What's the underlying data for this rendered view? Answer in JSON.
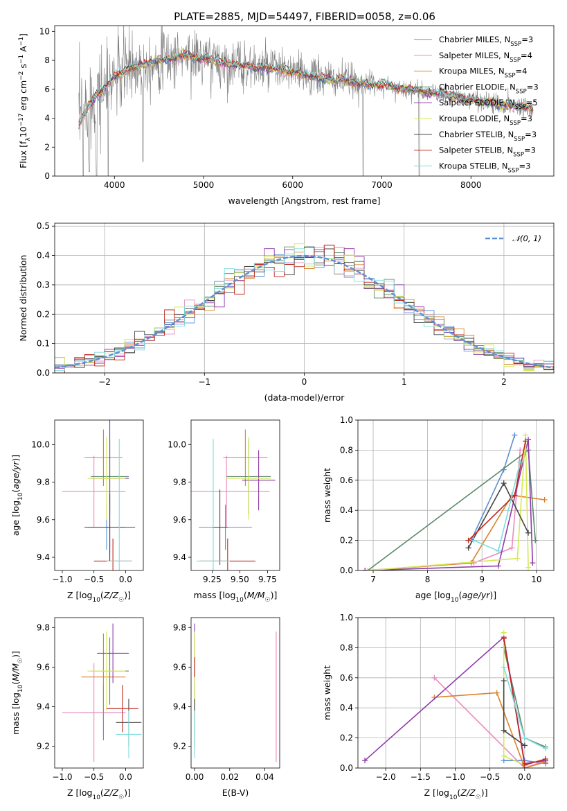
{
  "figure": {
    "title": "PLATE=2885, MJD=54497, FIBERID=0058, z=0.06"
  },
  "colors": {
    "Chabrier MILES": "#5b8fd6",
    "Salpeter MILES": "#e98bbf",
    "Kroupa MILES": "#d9822b",
    "Chabrier ELODIE": "#5a8a6a",
    "Salpeter ELODIE": "#8e3aa8",
    "Kroupa ELODIE": "#d4e857",
    "Chabrier STELIB": "#444444",
    "Salpeter STELIB": "#c0281e",
    "Kroupa STELIB": "#7fdcdc",
    "data": "#808080",
    "normal": "#5b8fd6"
  },
  "chart_data": [
    {
      "id": "spectrum",
      "type": "line",
      "xlabel": "wavelength [Angstrom, rest frame]",
      "ylabel": "Flux [f_λ 10^-17 erg cm^-2 s^-1 A^-1]",
      "xlim": [
        3330,
        8930
      ],
      "ylim": [
        0,
        10.4
      ],
      "xticks": [
        "4000",
        "5000",
        "6000",
        "7000",
        "8000"
      ],
      "yticks": [
        "0",
        "2",
        "4",
        "6",
        "8",
        "10"
      ],
      "legend_position": "upper-right",
      "legend": [
        {
          "model": "Chabrier MILES",
          "n": "3"
        },
        {
          "model": "Salpeter MILES",
          "n": "4"
        },
        {
          "model": "Kroupa MILES",
          "n": "4"
        },
        {
          "model": "Chabrier ELODIE",
          "n": "3"
        },
        {
          "model": "Salpeter ELODIE",
          "n": "5"
        },
        {
          "model": "Kroupa ELODIE",
          "n": "3"
        },
        {
          "model": "Chabrier STELIB",
          "n": "3"
        },
        {
          "model": "Salpeter STELIB",
          "n": "3"
        },
        {
          "model": "Kroupa STELIB",
          "n": "3"
        }
      ],
      "continuum": [
        [
          3600,
          3.6
        ],
        [
          3700,
          4.8
        ],
        [
          3800,
          5.6
        ],
        [
          3900,
          6.1
        ],
        [
          4000,
          6.9
        ],
        [
          4200,
          7.5
        ],
        [
          4400,
          7.9
        ],
        [
          4600,
          8.1
        ],
        [
          4800,
          8.4
        ],
        [
          5000,
          8.1
        ],
        [
          5200,
          7.8
        ],
        [
          5400,
          7.7
        ],
        [
          5600,
          7.5
        ],
        [
          5800,
          7.4
        ],
        [
          6000,
          7.2
        ],
        [
          6200,
          6.9
        ],
        [
          6400,
          6.7
        ],
        [
          6600,
          6.6
        ],
        [
          6800,
          6.4
        ],
        [
          7000,
          6.3
        ],
        [
          7200,
          6.1
        ],
        [
          7400,
          5.9
        ],
        [
          7600,
          5.7
        ],
        [
          7800,
          5.5
        ],
        [
          8000,
          5.3
        ],
        [
          8200,
          5.1
        ],
        [
          8400,
          4.9
        ],
        [
          8600,
          4.8
        ],
        [
          8700,
          4.7
        ]
      ],
      "data_noise_sigma": [
        [
          3600,
          2.2
        ],
        [
          4400,
          1.2
        ],
        [
          5200,
          1.0
        ],
        [
          6000,
          0.8
        ],
        [
          6600,
          0.7
        ],
        [
          7000,
          0.35
        ],
        [
          7800,
          0.35
        ],
        [
          8700,
          0.45
        ]
      ],
      "data_dips": [
        [
          3650,
          0.0
        ],
        [
          3720,
          0.3
        ],
        [
          3800,
          0.0
        ],
        [
          3930,
          0.0
        ],
        [
          4320,
          1.0
        ],
        [
          6790,
          0.0
        ],
        [
          7420,
          0.0
        ]
      ]
    },
    {
      "id": "residuals",
      "type": "line",
      "xlabel": "(data-model)/error",
      "ylabel": "Normed distribution",
      "xlim": [
        -2.5,
        2.5
      ],
      "ylim": [
        0,
        0.51
      ],
      "xticks": [
        "−2",
        "−1",
        "0",
        "1",
        "2"
      ],
      "yticks": [
        "0.0",
        "0.1",
        "0.2",
        "0.3",
        "0.4",
        "0.5"
      ],
      "legend_position": "upper-right",
      "legend": [
        {
          "label": "𝒩(0, 1)"
        }
      ],
      "bin_width": 0.1
    },
    {
      "id": "age_vs_Z",
      "type": "scatter",
      "xlabel": "Z [log10(Z/Z☉)]",
      "ylabel": "age [log10(age/yr)]",
      "xlim": [
        -1.12,
        0.28
      ],
      "ylim": [
        9.33,
        10.13
      ],
      "xticks": [
        "−1.0",
        "−0.5",
        "0.0"
      ],
      "yticks": [
        "9.4",
        "9.6",
        "9.8",
        "10.0"
      ],
      "points": [
        {
          "model": "Chabrier MILES",
          "x": -0.3,
          "xerr": 0.3,
          "y": 9.56,
          "yerr": 0.12
        },
        {
          "model": "Salpeter MILES",
          "x": -0.5,
          "xerr": 0.5,
          "y": 9.75,
          "yerr": 0.19
        },
        {
          "model": "Kroupa MILES",
          "x": -0.35,
          "xerr": 0.3,
          "y": 9.93,
          "yerr": 0.15
        },
        {
          "model": "Chabrier ELODIE",
          "x": -0.25,
          "xerr": 0.3,
          "y": 9.83,
          "yerr": 0.2
        },
        {
          "model": "Salpeter ELODIE",
          "x": -0.25,
          "xerr": 0.3,
          "y": 9.82,
          "yerr": 0.4
        },
        {
          "model": "Kroupa ELODIE",
          "x": -0.3,
          "xerr": 0.3,
          "y": 9.82,
          "yerr": 0.22
        },
        {
          "model": "Chabrier STELIB",
          "x": -0.25,
          "xerr": 0.4,
          "y": 9.56,
          "yerr": 0.18
        },
        {
          "model": "Salpeter STELIB",
          "x": -0.2,
          "xerr": 0.3,
          "y": 9.38,
          "yerr": 0.12
        },
        {
          "model": "Kroupa STELIB",
          "x": -0.1,
          "xerr": 0.2,
          "y": 9.38,
          "yerr": 0.65
        }
      ]
    },
    {
      "id": "age_vs_mass",
      "type": "scatter",
      "xlabel": "mass [log10(M/M☉)]",
      "xlim": [
        9.06,
        9.86
      ],
      "ylim": [
        9.33,
        10.13
      ],
      "xticks": [
        "9.25",
        "9.50",
        "9.75"
      ],
      "yticks": [
        "9.4",
        "9.6",
        "9.8",
        "10.0"
      ],
      "points": [
        {
          "model": "Chabrier MILES",
          "x": 9.37,
          "xerr": 0.24,
          "y": 9.56,
          "yerr": 0.12
        },
        {
          "model": "Salpeter MILES",
          "x": 9.38,
          "xerr": 0.39,
          "y": 9.75,
          "yerr": 0.19
        },
        {
          "model": "Kroupa MILES",
          "x": 9.55,
          "xerr": 0.2,
          "y": 9.93,
          "yerr": 0.15
        },
        {
          "model": "Chabrier ELODIE",
          "x": 9.58,
          "xerr": 0.2,
          "y": 9.83,
          "yerr": 0.2
        },
        {
          "model": "Salpeter ELODIE",
          "x": 9.67,
          "xerr": 0.15,
          "y": 9.81,
          "yerr": 0.16
        },
        {
          "model": "Kroupa ELODIE",
          "x": 9.58,
          "xerr": 0.2,
          "y": 9.82,
          "yerr": 0.22
        },
        {
          "model": "Chabrier STELIB",
          "x": 9.32,
          "xerr": 0.07,
          "y": 9.56,
          "yerr": 0.2
        },
        {
          "model": "Salpeter STELIB",
          "x": 9.39,
          "xerr": 0.25,
          "y": 9.38,
          "yerr": 0.12
        },
        {
          "model": "Kroupa STELIB",
          "x": 9.26,
          "xerr": 0.15,
          "y": 9.38,
          "yerr": 0.65
        }
      ]
    },
    {
      "id": "mass_weight_vs_age",
      "type": "line",
      "xlabel": "age [log10(age/yr)]",
      "ylabel": "mass weight",
      "xlim": [
        6.72,
        10.32
      ],
      "ylim": [
        0,
        1.0
      ],
      "xticks": [
        "7",
        "8",
        "9",
        "10"
      ],
      "yticks": [
        "0.0",
        "0.2",
        "0.4",
        "0.6",
        "0.8",
        "1.0"
      ],
      "series": [
        {
          "model": "Chabrier MILES",
          "points": [
            [
              8.8,
              0.2
            ],
            [
              9.4,
              0.67
            ],
            [
              9.6,
              0.9
            ]
          ]
        },
        {
          "model": "Salpeter MILES",
          "points": [
            [
              6.85,
              0.0
            ],
            [
              8.85,
              0.05
            ],
            [
              9.55,
              0.15
            ],
            [
              9.7,
              0.8
            ]
          ]
        },
        {
          "model": "Kroupa MILES",
          "points": [
            [
              6.9,
              0.0
            ],
            [
              8.8,
              0.05
            ],
            [
              9.55,
              0.5
            ],
            [
              10.15,
              0.47
            ]
          ]
        },
        {
          "model": "Chabrier ELODIE",
          "points": [
            [
              6.9,
              0.0
            ],
            [
              9.85,
              0.8
            ],
            [
              9.98,
              0.2
            ]
          ]
        },
        {
          "model": "Salpeter ELODIE",
          "points": [
            [
              6.85,
              0.0
            ],
            [
              9.3,
              0.03
            ],
            [
              9.85,
              0.87
            ],
            [
              9.93,
              0.05
            ]
          ]
        },
        {
          "model": "Kroupa ELODIE",
          "points": [
            [
              6.9,
              0.0
            ],
            [
              9.65,
              0.08
            ],
            [
              9.8,
              0.9
            ],
            [
              9.85,
              0.02
            ]
          ]
        },
        {
          "model": "Chabrier STELIB",
          "points": [
            [
              8.75,
              0.15
            ],
            [
              9.4,
              0.58
            ],
            [
              9.85,
              0.25
            ]
          ]
        },
        {
          "model": "Salpeter STELIB",
          "points": [
            [
              8.75,
              0.2
            ],
            [
              9.6,
              0.5
            ],
            [
              9.8,
              0.86
            ]
          ]
        },
        {
          "model": "Kroupa STELIB",
          "points": [
            [
              8.85,
              0.2
            ],
            [
              9.3,
              0.13
            ],
            [
              9.7,
              0.72
            ]
          ]
        }
      ]
    },
    {
      "id": "mass_vs_Z",
      "type": "scatter",
      "xlabel": "Z [log10(Z/Z☉)]",
      "ylabel": "mass [log10(M/M☉)]",
      "xlim": [
        -1.12,
        0.28
      ],
      "ylim": [
        9.09,
        9.85
      ],
      "xticks": [
        "−1.0",
        "−0.5",
        "0.0"
      ],
      "yticks": [
        "9.2",
        "9.4",
        "9.6",
        "9.8"
      ],
      "points": [
        {
          "model": "Chabrier MILES",
          "x": -0.35,
          "xerr": 0.35,
          "y": 9.37,
          "yerr": 0.14
        },
        {
          "model": "Salpeter MILES",
          "x": -0.5,
          "xerr": 0.5,
          "y": 9.37,
          "yerr": 0.25
        },
        {
          "model": "Kroupa MILES",
          "x": -0.35,
          "xerr": 0.35,
          "y": 9.55,
          "yerr": 0.22
        },
        {
          "model": "Chabrier ELODIE",
          "x": -0.25,
          "xerr": 0.3,
          "y": 9.58,
          "yerr": 0.17
        },
        {
          "model": "Salpeter ELODIE",
          "x": -0.2,
          "xerr": 0.25,
          "y": 9.67,
          "yerr": 0.15
        },
        {
          "model": "Kroupa ELODIE",
          "x": -0.3,
          "xerr": 0.3,
          "y": 9.58,
          "yerr": 0.2
        },
        {
          "model": "Chabrier STELIB",
          "x": 0.05,
          "xerr": 0.2,
          "y": 9.32,
          "yerr": 0.12
        },
        {
          "model": "Salpeter STELIB",
          "x": -0.05,
          "xerr": 0.25,
          "y": 9.39,
          "yerr": 0.12
        },
        {
          "model": "Kroupa STELIB",
          "x": 0.05,
          "xerr": 0.2,
          "y": 9.26,
          "yerr": 0.12
        }
      ]
    },
    {
      "id": "mass_vs_EBV",
      "type": "scatter",
      "xlabel": "E(B-V)",
      "xlim": [
        -0.002,
        0.0485
      ],
      "ylim": [
        9.09,
        9.85
      ],
      "xticks": [
        "0.00",
        "0.02",
        "0.04"
      ],
      "yticks": [
        "9.2",
        "9.4",
        "9.6",
        "9.8"
      ],
      "points": [
        {
          "model": "Chabrier MILES",
          "x": 0.0,
          "y": 9.37,
          "yerr": 0.14
        },
        {
          "model": "Salpeter MILES",
          "x": 0.0465,
          "y": 9.45,
          "yerr": 0.33
        },
        {
          "model": "Kroupa MILES",
          "x": 0.0,
          "y": 9.55,
          "yerr": 0.22
        },
        {
          "model": "Chabrier ELODIE",
          "x": 0.0,
          "y": 9.58,
          "yerr": 0.17
        },
        {
          "model": "Salpeter ELODIE",
          "x": 0.0,
          "y": 9.67,
          "yerr": 0.15
        },
        {
          "model": "Kroupa ELODIE",
          "x": 0.0,
          "y": 9.58,
          "yerr": 0.2
        },
        {
          "model": "Chabrier STELIB",
          "x": 0.0,
          "y": 9.32,
          "yerr": 0.12
        },
        {
          "model": "Salpeter STELIB",
          "x": 0.0,
          "y": 9.6,
          "yerr": 0.05
        },
        {
          "model": "Kroupa STELIB",
          "x": 0.0,
          "y": 9.26,
          "yerr": 0.12
        }
      ]
    },
    {
      "id": "mass_weight_vs_Z",
      "type": "line",
      "xlabel": "Z [log10(Z/Z☉)]",
      "ylabel": "mass weight",
      "xlim": [
        -2.4,
        0.42
      ],
      "ylim": [
        0,
        1.0
      ],
      "xticks": [
        "−2.0",
        "−1.5",
        "−1.0",
        "−0.5",
        "0.0"
      ],
      "yticks": [
        "0.0",
        "0.2",
        "0.4",
        "0.6",
        "0.8",
        "1.0"
      ],
      "series": [
        {
          "model": "Chabrier MILES",
          "points": [
            [
              -0.3,
              0.05
            ],
            [
              0.0,
              0.05
            ],
            [
              0.3,
              0.03
            ]
          ]
        },
        {
          "model": "Salpeter MILES",
          "points": [
            [
              -1.3,
              0.6
            ],
            [
              0.0,
              0.0
            ],
            [
              0.3,
              0.05
            ]
          ]
        },
        {
          "model": "Kroupa MILES",
          "points": [
            [
              -1.3,
              0.47
            ],
            [
              -0.4,
              0.5
            ],
            [
              0.0,
              0.0
            ],
            [
              0.3,
              0.04
            ]
          ]
        },
        {
          "model": "Chabrier ELODIE",
          "points": [
            [
              -0.3,
              0.8
            ],
            [
              0.0,
              0.2
            ],
            [
              0.3,
              0.14
            ]
          ]
        },
        {
          "model": "Salpeter ELODIE",
          "points": [
            [
              -2.3,
              0.05
            ],
            [
              -0.3,
              0.87
            ],
            [
              0.0,
              0.03
            ],
            [
              0.3,
              0.05
            ]
          ]
        },
        {
          "model": "Kroupa ELODIE",
          "points": [
            [
              -0.3,
              0.9
            ],
            [
              -0.3,
              0.08
            ],
            [
              0.0,
              0.02
            ]
          ]
        },
        {
          "model": "Chabrier STELIB",
          "points": [
            [
              -0.3,
              0.58
            ],
            [
              -0.3,
              0.25
            ],
            [
              0.0,
              0.15
            ]
          ]
        },
        {
          "model": "Salpeter STELIB",
          "points": [
            [
              -0.3,
              0.86
            ],
            [
              0.0,
              0.02
            ],
            [
              0.3,
              0.06
            ]
          ]
        },
        {
          "model": "Kroupa STELIB",
          "points": [
            [
              -0.3,
              0.67
            ],
            [
              0.0,
              0.2
            ],
            [
              0.3,
              0.13
            ]
          ]
        }
      ]
    }
  ]
}
